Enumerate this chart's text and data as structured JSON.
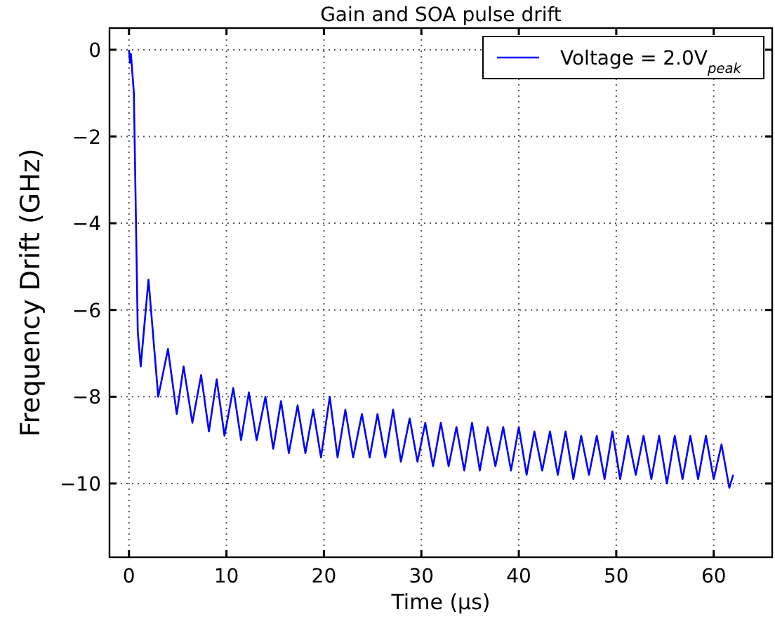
{
  "chart_data": {
    "type": "line",
    "title": "Gain and SOA pulse drift",
    "xlabel": "Time (μs)",
    "ylabel": "Frequency Drift (GHz)",
    "xlim": [
      -2,
      66
    ],
    "ylim": [
      -11.7,
      0.5
    ],
    "xticks": [
      0,
      10,
      20,
      30,
      40,
      50,
      60
    ],
    "yticks": [
      0,
      -2,
      -4,
      -6,
      -8,
      -10
    ],
    "grid": true,
    "legend": "top right",
    "line_style": "solid",
    "marker": "none",
    "series": [
      {
        "name": "Voltage = 2.0V$_{peak}$",
        "color": "#0000ff",
        "x": [
          0,
          0.1,
          0.2,
          0.5,
          0.9,
          1.2,
          2.0,
          3.0,
          4.0,
          4.9,
          5.6,
          6.5,
          7.4,
          8.2,
          9.0,
          9.8,
          10.7,
          11.5,
          12.3,
          13.1,
          14.0,
          14.8,
          15.6,
          16.4,
          17.3,
          18.1,
          18.9,
          19.7,
          20.6,
          21.4,
          22.2,
          23.0,
          23.9,
          24.7,
          25.5,
          26.3,
          27.1,
          27.9,
          28.8,
          29.6,
          30.4,
          31.2,
          32.0,
          32.8,
          33.6,
          34.4,
          35.2,
          36.0,
          36.8,
          37.6,
          38.4,
          39.2,
          40.0,
          40.8,
          41.6,
          42.4,
          43.2,
          44.0,
          44.8,
          45.6,
          46.4,
          47.2,
          48.0,
          48.8,
          49.6,
          50.4,
          51.2,
          52.0,
          52.8,
          53.6,
          54.4,
          55.2,
          56.0,
          56.8,
          57.6,
          58.4,
          59.2,
          60.0,
          60.8,
          61.6,
          62.0
        ],
        "values": [
          0,
          -0.3,
          -0.1,
          -1,
          -6.5,
          -7.3,
          -5.3,
          -8.0,
          -6.9,
          -8.4,
          -7.3,
          -8.6,
          -7.5,
          -8.8,
          -7.6,
          -8.9,
          -7.8,
          -9.0,
          -7.9,
          -9.0,
          -8.0,
          -9.2,
          -8.1,
          -9.3,
          -8.2,
          -9.3,
          -8.3,
          -9.4,
          -8.0,
          -9.4,
          -8.3,
          -9.4,
          -8.4,
          -9.4,
          -8.4,
          -9.4,
          -8.3,
          -9.5,
          -8.5,
          -9.5,
          -8.6,
          -9.6,
          -8.6,
          -9.6,
          -8.7,
          -9.7,
          -8.6,
          -9.7,
          -8.7,
          -9.6,
          -8.7,
          -9.7,
          -8.7,
          -9.8,
          -8.8,
          -9.7,
          -8.8,
          -9.8,
          -8.8,
          -9.9,
          -8.9,
          -9.8,
          -8.9,
          -9.9,
          -8.8,
          -9.9,
          -8.9,
          -9.8,
          -8.9,
          -9.9,
          -8.9,
          -10.0,
          -8.9,
          -9.9,
          -8.9,
          -9.9,
          -8.9,
          -9.9,
          -9.1,
          -10.1,
          -9.8
        ]
      }
    ]
  }
}
